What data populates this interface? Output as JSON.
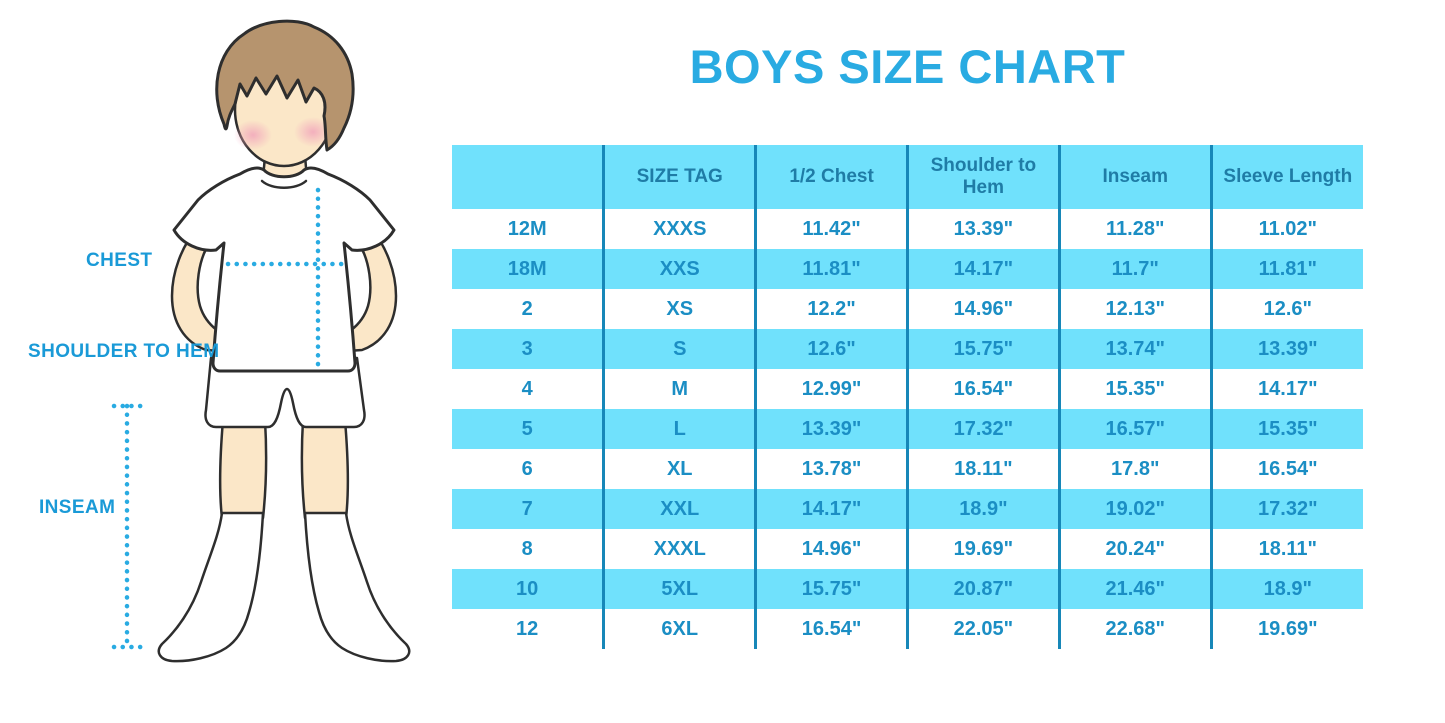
{
  "title": "BOYS SIZE CHART",
  "figure": {
    "labels": {
      "chest": "CHEST",
      "shoulder_to_hem": "SHOULDER TO HEM",
      "inseam": "INSEAM"
    }
  },
  "colors": {
    "accent_blue": "#29ABE2",
    "label_blue": "#1A9AD7",
    "stripe_blue": "#70E1FC",
    "divider_blue": "#1787B8",
    "header_text": "#1F7CA6",
    "cell_text": "#1B8EC4",
    "hair": "#B6946E",
    "skin": "#FBE7C8",
    "cheek": "#F2A9BC",
    "outline": "#2E2E2E"
  },
  "chart_data": {
    "type": "table",
    "title": "BOYS SIZE CHART",
    "columns": [
      "",
      "SIZE TAG",
      "1/2 Chest",
      "Shoulder to Hem",
      "Inseam",
      "Sleeve Length"
    ],
    "rows": [
      [
        "12M",
        "XXXS",
        "11.42\"",
        "13.39\"",
        "11.28\"",
        "11.02\""
      ],
      [
        "18M",
        "XXS",
        "11.81\"",
        "14.17\"",
        "11.7\"",
        "11.81\""
      ],
      [
        "2",
        "XS",
        "12.2\"",
        "14.96\"",
        "12.13\"",
        "12.6\""
      ],
      [
        "3",
        "S",
        "12.6\"",
        "15.75\"",
        "13.74\"",
        "13.39\""
      ],
      [
        "4",
        "M",
        "12.99\"",
        "16.54\"",
        "15.35\"",
        "14.17\""
      ],
      [
        "5",
        "L",
        "13.39\"",
        "17.32\"",
        "16.57\"",
        "15.35\""
      ],
      [
        "6",
        "XL",
        "13.78\"",
        "18.11\"",
        "17.8\"",
        "16.54\""
      ],
      [
        "7",
        "XXL",
        "14.17\"",
        "18.9\"",
        "19.02\"",
        "17.32\""
      ],
      [
        "8",
        "XXXL",
        "14.96\"",
        "19.69\"",
        "20.24\"",
        "18.11\""
      ],
      [
        "10",
        "5XL",
        "15.75\"",
        "20.87\"",
        "21.46\"",
        "18.9\""
      ],
      [
        "12",
        "6XL",
        "16.54\"",
        "22.05\"",
        "22.68\"",
        "19.69\""
      ]
    ]
  }
}
